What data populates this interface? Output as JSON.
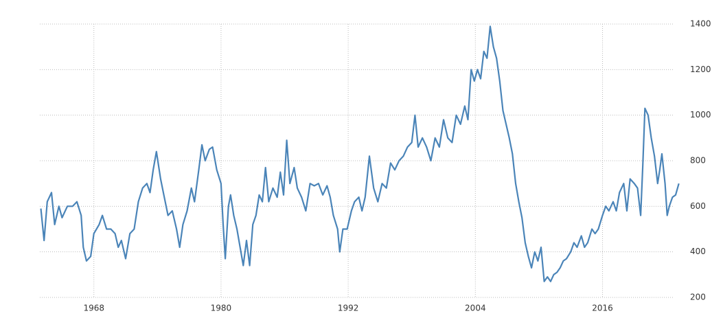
{
  "chart_data": {
    "type": "line",
    "x": [
      1963.0,
      1963.3,
      1963.6,
      1964.0,
      1964.3,
      1964.7,
      1965.0,
      1965.5,
      1966.0,
      1966.4,
      1966.8,
      1967.0,
      1967.3,
      1967.7,
      1968.0,
      1968.5,
      1968.8,
      1969.2,
      1969.6,
      1970.0,
      1970.3,
      1970.6,
      1971.0,
      1971.4,
      1971.8,
      1972.2,
      1972.6,
      1973.0,
      1973.3,
      1973.6,
      1973.9,
      1974.3,
      1974.6,
      1975.0,
      1975.4,
      1975.8,
      1976.1,
      1976.4,
      1976.8,
      1977.2,
      1977.5,
      1977.9,
      1978.2,
      1978.5,
      1978.9,
      1979.2,
      1979.6,
      1980.0,
      1980.2,
      1980.4,
      1980.7,
      1980.9,
      1981.2,
      1981.5,
      1981.8,
      1982.1,
      1982.4,
      1982.7,
      1983.0,
      1983.3,
      1983.6,
      1983.9,
      1984.2,
      1984.5,
      1984.9,
      1985.3,
      1985.6,
      1985.9,
      1986.2,
      1986.5,
      1986.9,
      1987.2,
      1987.6,
      1988.0,
      1988.4,
      1988.8,
      1989.2,
      1989.6,
      1990.0,
      1990.3,
      1990.6,
      1991.0,
      1991.2,
      1991.5,
      1991.9,
      1992.3,
      1992.6,
      1993.0,
      1993.3,
      1993.6,
      1994.0,
      1994.4,
      1994.8,
      1995.2,
      1995.6,
      1996.0,
      1996.4,
      1996.8,
      1997.2,
      1997.6,
      1998.0,
      1998.3,
      1998.6,
      1999.0,
      1999.4,
      1999.8,
      2000.2,
      2000.6,
      2001.0,
      2001.4,
      2001.8,
      2002.2,
      2002.6,
      2003.0,
      2003.3,
      2003.6,
      2003.9,
      2004.2,
      2004.5,
      2004.8,
      2005.1,
      2005.4,
      2005.7,
      2006.0,
      2006.3,
      2006.6,
      2006.9,
      2007.2,
      2007.5,
      2007.8,
      2008.1,
      2008.4,
      2008.7,
      2009.0,
      2009.3,
      2009.6,
      2009.9,
      2010.2,
      2010.5,
      2010.8,
      2011.1,
      2011.4,
      2011.7,
      2012.0,
      2012.3,
      2012.6,
      2013.0,
      2013.3,
      2013.6,
      2014.0,
      2014.3,
      2014.6,
      2015.0,
      2015.3,
      2015.6,
      2016.0,
      2016.3,
      2016.6,
      2017.0,
      2017.3,
      2017.6,
      2018.0,
      2018.3,
      2018.6,
      2019.0,
      2019.3,
      2019.6,
      2019.8,
      2020.0,
      2020.3,
      2020.6,
      2020.9,
      2021.2,
      2021.4,
      2021.6,
      2021.9,
      2022.1,
      2022.3,
      2022.6,
      2022.9,
      2023.2
    ],
    "series": [
      {
        "color": "#4a84b8",
        "values": [
          590,
          450,
          620,
          660,
          520,
          600,
          550,
          600,
          600,
          620,
          560,
          420,
          360,
          380,
          480,
          520,
          560,
          500,
          500,
          480,
          420,
          450,
          370,
          480,
          500,
          620,
          680,
          700,
          660,
          760,
          840,
          720,
          650,
          560,
          580,
          500,
          420,
          520,
          580,
          680,
          620,
          760,
          870,
          800,
          850,
          860,
          760,
          700,
          520,
          370,
          600,
          650,
          560,
          500,
          420,
          340,
          450,
          340,
          520,
          560,
          650,
          620,
          770,
          620,
          680,
          640,
          750,
          650,
          890,
          700,
          770,
          680,
          640,
          580,
          700,
          690,
          700,
          650,
          690,
          640,
          560,
          500,
          400,
          500,
          500,
          580,
          620,
          640,
          580,
          640,
          820,
          680,
          620,
          700,
          680,
          790,
          760,
          800,
          820,
          860,
          880,
          1000,
          860,
          900,
          860,
          800,
          900,
          860,
          980,
          900,
          880,
          1000,
          960,
          1040,
          980,
          1200,
          1150,
          1200,
          1160,
          1280,
          1250,
          1390,
          1300,
          1250,
          1150,
          1020,
          960,
          900,
          830,
          700,
          620,
          550,
          440,
          380,
          330,
          400,
          360,
          420,
          270,
          290,
          270,
          300,
          310,
          330,
          360,
          370,
          400,
          440,
          420,
          470,
          420,
          440,
          500,
          480,
          500,
          560,
          600,
          580,
          620,
          580,
          660,
          700,
          580,
          720,
          700,
          680,
          560,
          780,
          1030,
          1000,
          900,
          820,
          700,
          760,
          830,
          700,
          560,
          600,
          640,
          650,
          700
        ]
      }
    ],
    "xlim": [
      1962.9,
      2024.0
    ],
    "xticks": [
      1968,
      1980,
      1992,
      2004,
      2016
    ],
    "ylim": [
      200,
      1400
    ],
    "yticks": [
      200,
      400,
      600,
      800,
      1000,
      1200,
      1400
    ],
    "grid": true
  }
}
